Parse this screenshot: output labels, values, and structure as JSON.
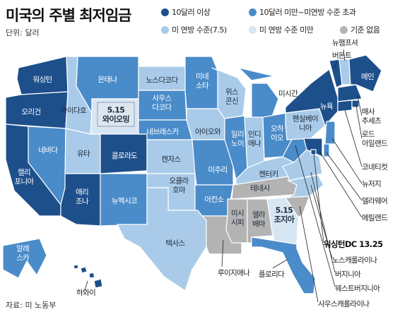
{
  "title": "미국의 주별 최저임금",
  "unit": "단위: 달러",
  "source": "자료: 미 노동부",
  "colors": {
    "over10": "#1d4f8b",
    "mid": "#4a8bc9",
    "federal": "#a9cbe9",
    "under": "#d7e6f3",
    "none": "#b3b3b3"
  },
  "legend": [
    {
      "key": "over10",
      "label": "10달러 이상"
    },
    {
      "key": "mid",
      "label": "10달러 미만~미연방 수준 초과"
    },
    {
      "key": "federal",
      "label": "미 연방 수준(7.5)"
    },
    {
      "key": "under",
      "label": "미 연방 수준 미만"
    },
    {
      "key": "none",
      "label": "기준 없음"
    }
  ],
  "states": {
    "WA": {
      "name": "워싱턴",
      "cat": "over10"
    },
    "OR": {
      "name": "오리건",
      "cat": "over10"
    },
    "CA": {
      "name": "캘리\n포니아",
      "cat": "over10"
    },
    "NV": {
      "name": "네바다",
      "cat": "mid"
    },
    "ID": {
      "name": "아이다호",
      "cat": "federal"
    },
    "MT": {
      "name": "몬태나",
      "cat": "mid"
    },
    "WY": {
      "name": "5.15\n와이오밍",
      "cat": "under"
    },
    "UT": {
      "name": "유타",
      "cat": "federal"
    },
    "CO": {
      "name": "콜로라도",
      "cat": "over10"
    },
    "AZ": {
      "name": "애리\n조나",
      "cat": "over10"
    },
    "NM": {
      "name": "뉴멕시코",
      "cat": "mid"
    },
    "ND": {
      "name": "노스다코다",
      "cat": "federal"
    },
    "SD": {
      "name": "사우스\n다코다",
      "cat": "mid"
    },
    "NE": {
      "name": "네브래스카",
      "cat": "mid"
    },
    "KS": {
      "name": "캔자스",
      "cat": "federal"
    },
    "OK": {
      "name": "오클라\n호마",
      "cat": "federal"
    },
    "TX": {
      "name": "텍사스",
      "cat": "federal"
    },
    "MN": {
      "name": "미네\n소타",
      "cat": "mid"
    },
    "IA": {
      "name": "아이오와",
      "cat": "federal"
    },
    "MO": {
      "name": "미주리",
      "cat": "mid"
    },
    "AR": {
      "name": "아칸소",
      "cat": "mid"
    },
    "LA": {
      "name": "",
      "cat": "none"
    },
    "WI": {
      "name": "위스\n콘신",
      "cat": "federal"
    },
    "IL": {
      "name": "일리\n노이",
      "cat": "mid"
    },
    "MI": {
      "name": "",
      "cat": "mid"
    },
    "IN": {
      "name": "인디\n애나",
      "cat": "federal"
    },
    "OH": {
      "name": "오하\n이오",
      "cat": "mid"
    },
    "KY": {
      "name": "켄터키",
      "cat": "federal"
    },
    "TN": {
      "name": "테네시",
      "cat": "none"
    },
    "MS": {
      "name": "미시\n시피",
      "cat": "none"
    },
    "AL": {
      "name": "앨라\n배마",
      "cat": "none"
    },
    "GA": {
      "name": "5.15\n조지아",
      "cat": "under"
    },
    "FL": {
      "name": "",
      "cat": "mid"
    },
    "SC": {
      "name": "",
      "cat": "none"
    },
    "NC": {
      "name": "",
      "cat": "federal"
    },
    "VA": {
      "name": "",
      "cat": "federal"
    },
    "WV": {
      "name": "",
      "cat": "mid"
    },
    "PA": {
      "name": "펜실베이\n니아",
      "cat": "federal"
    },
    "NY": {
      "name": "뉴욕",
      "cat": "over10"
    },
    "VT": {
      "name": "",
      "cat": "over10"
    },
    "NH": {
      "name": "",
      "cat": "federal"
    },
    "ME": {
      "name": "메인",
      "cat": "over10"
    },
    "MA": {
      "name": "",
      "cat": "over10"
    },
    "RI": {
      "name": "",
      "cat": "over10"
    },
    "CT": {
      "name": "",
      "cat": "over10"
    },
    "NJ": {
      "name": "",
      "cat": "mid"
    },
    "DE": {
      "name": "",
      "cat": "mid"
    },
    "MD": {
      "name": "",
      "cat": "over10"
    },
    "DC": {
      "name": "",
      "cat": "over10"
    },
    "AK": {
      "name": "알래\n스카",
      "cat": "mid"
    },
    "HI": {
      "name": "",
      "cat": "over10"
    }
  },
  "external_labels": {
    "MI": "미시간",
    "NH": "뉴햄프셔",
    "VT": "버몬트",
    "MA": "매사\n추세츠",
    "RI": "로드\n아일랜드",
    "CT": "코네티컷",
    "NJ": "뉴저지",
    "DE": "델라웨어",
    "MD": "메릴랜드",
    "DC": "워싱턴DC 13.25",
    "NC": "노스캐롤라이나",
    "VA": "버지니아",
    "WV": "웨스트버지니아",
    "SC": "사우스캐롤라이나",
    "LA": "루이지애나",
    "FL": "플로리다",
    "HI": "하와이"
  }
}
